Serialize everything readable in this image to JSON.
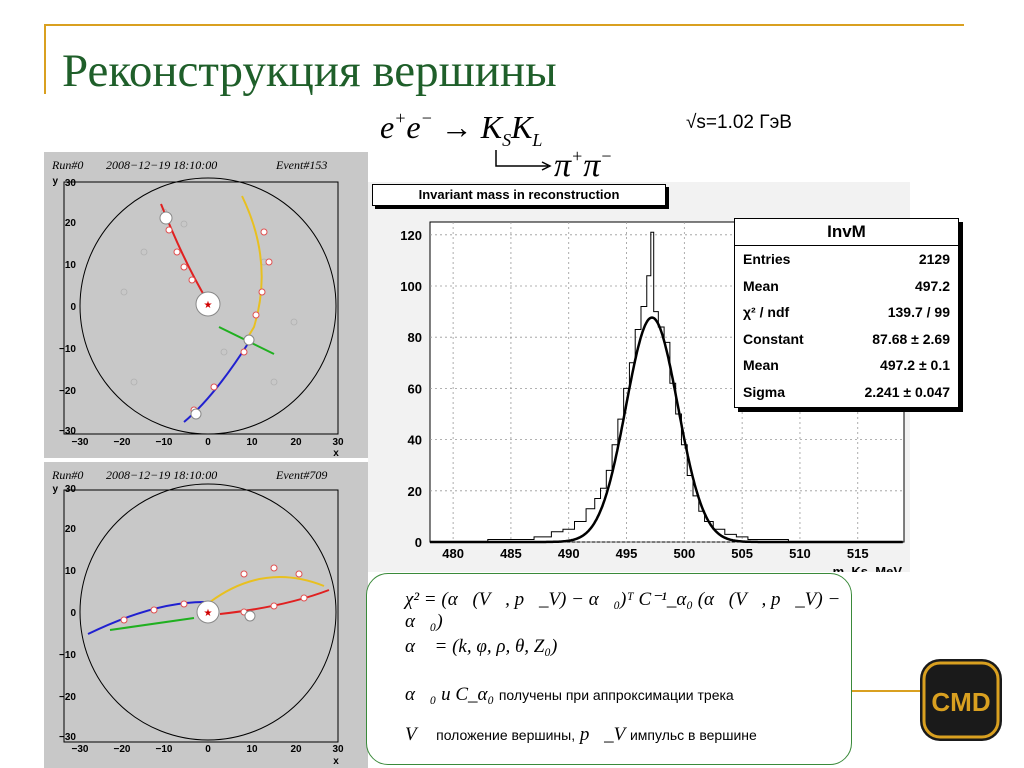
{
  "slide": {
    "title": "Реконструкция вершины",
    "reaction": {
      "main": "e⁺e⁻ → K_S K_L",
      "decay": "π⁺π⁻",
      "energy": "√s=1.02 ГэВ"
    }
  },
  "event_displays": [
    {
      "run": "Run#0",
      "datetime": "2008−12−19 18:10:00",
      "event": "Event#153",
      "xlabel": "x",
      "ylabel": "y",
      "ticks": [
        "−30",
        "−20",
        "−10",
        "0",
        "10",
        "20",
        "30"
      ],
      "y_ticks": [
        "30",
        "20",
        "10",
        "0",
        "−10",
        "−20",
        "−30"
      ]
    },
    {
      "run": "Run#0",
      "datetime": "2008−12−19 18:10:00",
      "event": "Event#709",
      "xlabel": "x",
      "ylabel": "y",
      "ticks": [
        "−30",
        "−20",
        "−10",
        "0",
        "10",
        "20",
        "30"
      ],
      "y_ticks": [
        "30",
        "20",
        "10",
        "0",
        "−10",
        "−20",
        "−30"
      ]
    }
  ],
  "histogram": {
    "title": "Invariant mass in reconstruction",
    "xlabel": "m_Ks, MeV",
    "x_ticks": [
      "480",
      "485",
      "490",
      "495",
      "500",
      "505",
      "510",
      "515"
    ],
    "y_ticks": [
      "0",
      "20",
      "40",
      "60",
      "80",
      "100",
      "120"
    ],
    "stats": {
      "name": "InvM",
      "rows": [
        {
          "label": "Entries",
          "value": "2129"
        },
        {
          "label": "Mean",
          "value": "497.2"
        },
        {
          "label": "χ² / ndf",
          "value": "139.7 / 99"
        },
        {
          "label": "Constant",
          "value": "87.68 ± 2.69"
        },
        {
          "label": "Mean",
          "value": "497.2 ± 0.1"
        },
        {
          "label": "Sigma",
          "value": "2.241 ± 0.047"
        }
      ]
    }
  },
  "chart_data": {
    "type": "histogram",
    "title": "Invariant mass in reconstruction",
    "xlabel": "m_Ks, MeV",
    "xlim": [
      478,
      519
    ],
    "ylim": [
      0,
      125
    ],
    "fit": {
      "type": "gaussian",
      "constant": 87.68,
      "mean": 497.2,
      "sigma": 2.241
    },
    "bins_center": [
      480,
      482,
      484,
      486,
      488,
      489,
      490,
      491,
      492,
      492.5,
      493,
      493.5,
      494,
      494.5,
      495,
      495.5,
      496,
      496.5,
      497,
      497.2,
      497.5,
      498,
      498.5,
      499,
      499.5,
      500,
      500.5,
      501,
      501.5,
      502,
      503,
      504,
      505,
      506,
      508,
      510,
      512
    ],
    "counts": [
      0,
      0,
      1,
      1,
      2,
      4,
      5,
      8,
      13,
      17,
      21,
      28,
      38,
      48,
      60,
      70,
      83,
      92,
      104,
      121,
      90,
      84,
      78,
      62,
      50,
      38,
      26,
      18,
      12,
      8,
      5,
      3,
      2,
      1,
      1,
      0,
      0
    ]
  },
  "formulas": {
    "chi2": "χ² = (α⃗(V⃗, p⃗_V) − α⃗₀)ᵀ C⁻¹_α₀ (α⃗(V⃗, p⃗_V) − α⃗₀)",
    "alpha": "α⃗ = (k, φ, ρ, θ, Z₀)",
    "line3_a": "α⃗₀ и C_α₀",
    "line3_text": "получены при аппроксимации трека",
    "line4_v": "V⃗",
    "line4_text1": "положение вершины,",
    "line4_p": "p⃗_V",
    "line4_text2": "импульс в вершине"
  },
  "logo": {
    "text": "CMD"
  },
  "colors": {
    "title": "#1f5f2a",
    "accent_line": "#d9a020",
    "box_border": "#3a8a3a"
  }
}
